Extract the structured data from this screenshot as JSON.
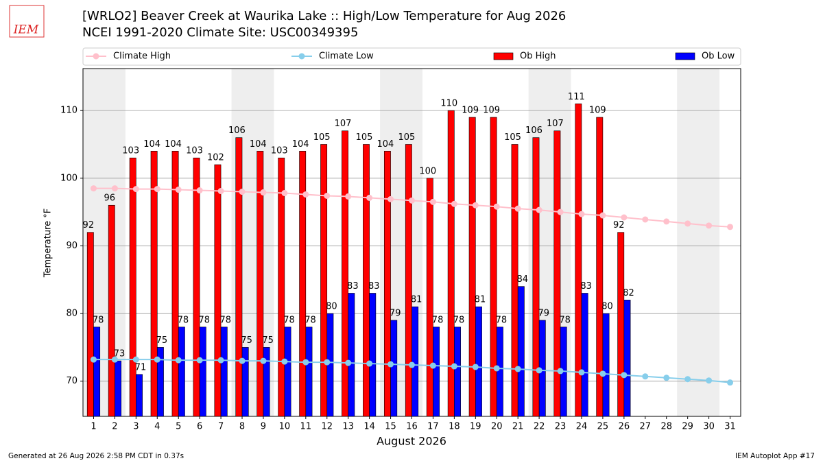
{
  "chart_data": {
    "type": "bar",
    "title": "[WRLO2] Beaver Creek at Waurika Lake :: High/Low Temperature for Aug 2026",
    "subtitle": "NCEI 1991-2020 Climate Site: USC00349395",
    "logo": "IEM",
    "xlabel": "August 2026",
    "ylabel": "Temperature °F",
    "footer_left": "Generated at 26 Aug 2026 2:58 PM CDT in 0.37s",
    "footer_right": "IEM Autoplot App #17",
    "x": [
      1,
      2,
      3,
      4,
      5,
      6,
      7,
      8,
      9,
      10,
      11,
      12,
      13,
      14,
      15,
      16,
      17,
      18,
      19,
      20,
      21,
      22,
      23,
      24,
      25,
      26,
      27,
      28,
      29,
      30,
      31
    ],
    "xlim": [
      0.5,
      31.5
    ],
    "xticks": [
      1,
      2,
      3,
      4,
      5,
      6,
      7,
      8,
      9,
      10,
      11,
      12,
      13,
      14,
      15,
      16,
      17,
      18,
      19,
      20,
      21,
      22,
      23,
      24,
      25,
      26,
      27,
      28,
      29,
      30,
      31
    ],
    "ylim": [
      64.8,
      116.2
    ],
    "yticks": [
      70,
      80,
      90,
      100,
      110
    ],
    "grid": true,
    "series": [
      {
        "name": "Climate High",
        "kind": "line",
        "color": "#ffc0cb",
        "values": [
          98.5,
          98.5,
          98.4,
          98.4,
          98.3,
          98.2,
          98.1,
          98.0,
          97.9,
          97.8,
          97.6,
          97.4,
          97.3,
          97.1,
          96.9,
          96.7,
          96.5,
          96.2,
          96.0,
          95.8,
          95.5,
          95.3,
          95.0,
          94.7,
          94.5,
          94.2,
          93.9,
          93.6,
          93.3,
          93.0,
          92.8
        ]
      },
      {
        "name": "Climate Low",
        "kind": "line",
        "color": "#87ceeb",
        "values": [
          73.2,
          73.2,
          73.2,
          73.2,
          73.1,
          73.1,
          73.1,
          73.0,
          73.0,
          72.9,
          72.8,
          72.8,
          72.7,
          72.6,
          72.5,
          72.4,
          72.3,
          72.2,
          72.1,
          71.9,
          71.8,
          71.6,
          71.5,
          71.3,
          71.1,
          70.9,
          70.7,
          70.5,
          70.3,
          70.1,
          69.8
        ]
      },
      {
        "name": "Ob High",
        "kind": "bar",
        "color": "#ff0000",
        "values": [
          92,
          96,
          103,
          104,
          104,
          103,
          102,
          106,
          104,
          103,
          104,
          105,
          107,
          105,
          104,
          105,
          100,
          110,
          109,
          109,
          105,
          106,
          107,
          111,
          109,
          92,
          null,
          null,
          null,
          null,
          null
        ]
      },
      {
        "name": "Ob Low",
        "kind": "bar",
        "color": "#0000ff",
        "values": [
          78,
          73,
          71,
          75,
          78,
          78,
          78,
          75,
          75,
          78,
          78,
          80,
          83,
          83,
          79,
          81,
          78,
          78,
          81,
          78,
          84,
          79,
          78,
          83,
          80,
          82,
          null,
          null,
          null,
          null,
          null
        ]
      }
    ]
  }
}
